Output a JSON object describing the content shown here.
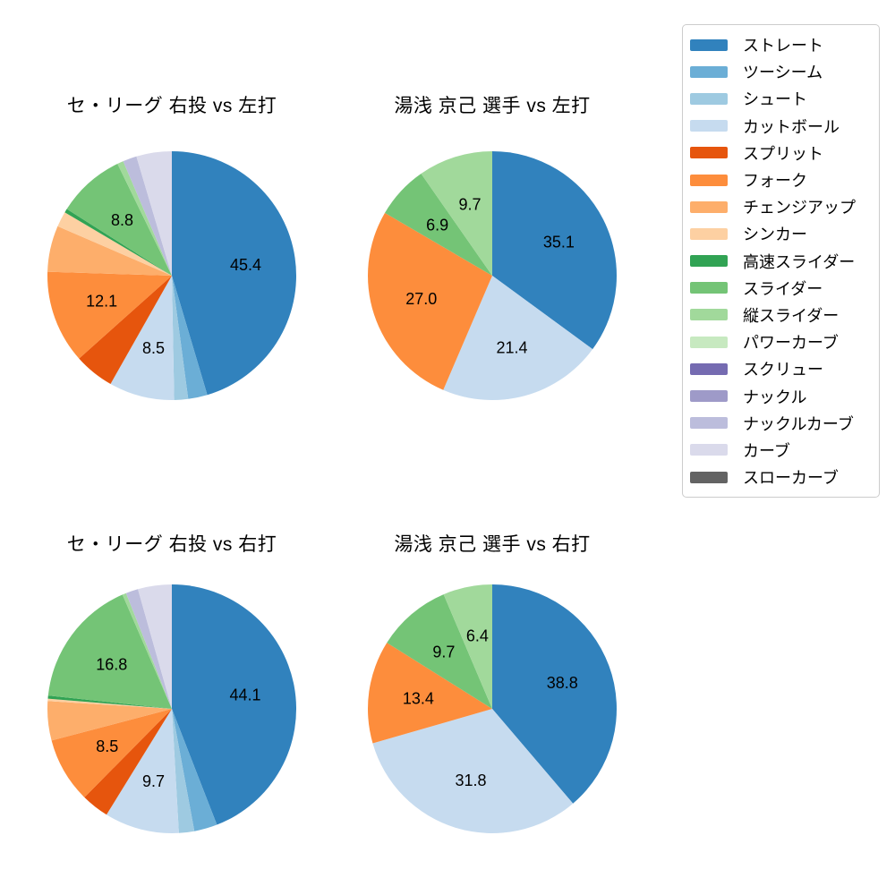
{
  "figure": {
    "background_color": "#ffffff",
    "description": "Four pie charts of pitch-type usage percentages"
  },
  "legend": {
    "position": "top-right",
    "border_color": "#cccccc",
    "items": [
      {
        "label": "ストレート",
        "color": "#3182bd"
      },
      {
        "label": "ツーシーム",
        "color": "#6baed6"
      },
      {
        "label": "シュート",
        "color": "#9ecae1"
      },
      {
        "label": "カットボール",
        "color": "#c6dbef"
      },
      {
        "label": "スプリット",
        "color": "#e6550d"
      },
      {
        "label": "フォーク",
        "color": "#fd8d3c"
      },
      {
        "label": "チェンジアップ",
        "color": "#fdae6b"
      },
      {
        "label": "シンカー",
        "color": "#fdd0a2"
      },
      {
        "label": "高速スライダー",
        "color": "#31a354"
      },
      {
        "label": "スライダー",
        "color": "#74c476"
      },
      {
        "label": "縦スライダー",
        "color": "#a1d99b"
      },
      {
        "label": "パワーカーブ",
        "color": "#c7e9c0"
      },
      {
        "label": "スクリュー",
        "color": "#756bb1"
      },
      {
        "label": "ナックル",
        "color": "#9e9ac8"
      },
      {
        "label": "ナックルカーブ",
        "color": "#bcbddc"
      },
      {
        "label": "カーブ",
        "color": "#dadaeb"
      },
      {
        "label": "スローカーブ",
        "color": "#636363"
      }
    ]
  },
  "chart_data": [
    {
      "type": "pie",
      "title": "セ・リーグ 右投 vs 左打",
      "start_angle": "top",
      "direction": "clockwise",
      "slices": [
        {
          "pitch": "ストレート",
          "value": 45.4,
          "label_shown": true
        },
        {
          "pitch": "ツーシーム",
          "value": 2.5,
          "label_shown": false
        },
        {
          "pitch": "シュート",
          "value": 1.8,
          "label_shown": false
        },
        {
          "pitch": "カットボール",
          "value": 8.5,
          "label_shown": true
        },
        {
          "pitch": "スプリット",
          "value": 5.2,
          "label_shown": false
        },
        {
          "pitch": "フォーク",
          "value": 12.1,
          "label_shown": true
        },
        {
          "pitch": "チェンジアップ",
          "value": 6.0,
          "label_shown": false
        },
        {
          "pitch": "シンカー",
          "value": 2.0,
          "label_shown": false
        },
        {
          "pitch": "高速スライダー",
          "value": 0.5,
          "label_shown": false
        },
        {
          "pitch": "スライダー",
          "value": 8.8,
          "label_shown": true
        },
        {
          "pitch": "縦スライダー",
          "value": 0.8,
          "label_shown": false
        },
        {
          "pitch": "ナックルカーブ",
          "value": 1.8,
          "label_shown": false
        },
        {
          "pitch": "カーブ",
          "value": 4.6,
          "label_shown": false
        }
      ]
    },
    {
      "type": "pie",
      "title": "湯浅 京己 選手 vs 左打",
      "start_angle": "top",
      "direction": "clockwise",
      "slices": [
        {
          "pitch": "ストレート",
          "value": 35.1,
          "label_shown": true
        },
        {
          "pitch": "カットボール",
          "value": 21.4,
          "label_shown": true
        },
        {
          "pitch": "フォーク",
          "value": 27.0,
          "label_shown": true
        },
        {
          "pitch": "スライダー",
          "value": 6.9,
          "label_shown": true
        },
        {
          "pitch": "縦スライダー",
          "value": 9.7,
          "label_shown": true
        }
      ]
    },
    {
      "type": "pie",
      "title": "セ・リーグ 右投 vs 右打",
      "start_angle": "top",
      "direction": "clockwise",
      "slices": [
        {
          "pitch": "ストレート",
          "value": 44.1,
          "label_shown": true
        },
        {
          "pitch": "ツーシーム",
          "value": 3.0,
          "label_shown": false
        },
        {
          "pitch": "シュート",
          "value": 2.0,
          "label_shown": false
        },
        {
          "pitch": "カットボール",
          "value": 9.7,
          "label_shown": true
        },
        {
          "pitch": "スプリット",
          "value": 3.6,
          "label_shown": false
        },
        {
          "pitch": "フォーク",
          "value": 8.5,
          "label_shown": true
        },
        {
          "pitch": "チェンジアップ",
          "value": 5.1,
          "label_shown": false
        },
        {
          "pitch": "シンカー",
          "value": 0.3,
          "label_shown": false
        },
        {
          "pitch": "高速スライダー",
          "value": 0.4,
          "label_shown": false
        },
        {
          "pitch": "スライダー",
          "value": 16.8,
          "label_shown": true
        },
        {
          "pitch": "縦スライダー",
          "value": 0.5,
          "label_shown": false
        },
        {
          "pitch": "ナックルカーブ",
          "value": 1.6,
          "label_shown": false
        },
        {
          "pitch": "カーブ",
          "value": 4.4,
          "label_shown": false
        }
      ]
    },
    {
      "type": "pie",
      "title": "湯浅 京己 選手 vs 右打",
      "start_angle": "top",
      "direction": "clockwise",
      "slices": [
        {
          "pitch": "ストレート",
          "value": 38.8,
          "label_shown": true
        },
        {
          "pitch": "カットボール",
          "value": 31.8,
          "label_shown": true
        },
        {
          "pitch": "フォーク",
          "value": 13.4,
          "label_shown": true
        },
        {
          "pitch": "スライダー",
          "value": 9.7,
          "label_shown": true
        },
        {
          "pitch": "縦スライダー",
          "value": 6.4,
          "label_shown": true
        }
      ]
    }
  ]
}
